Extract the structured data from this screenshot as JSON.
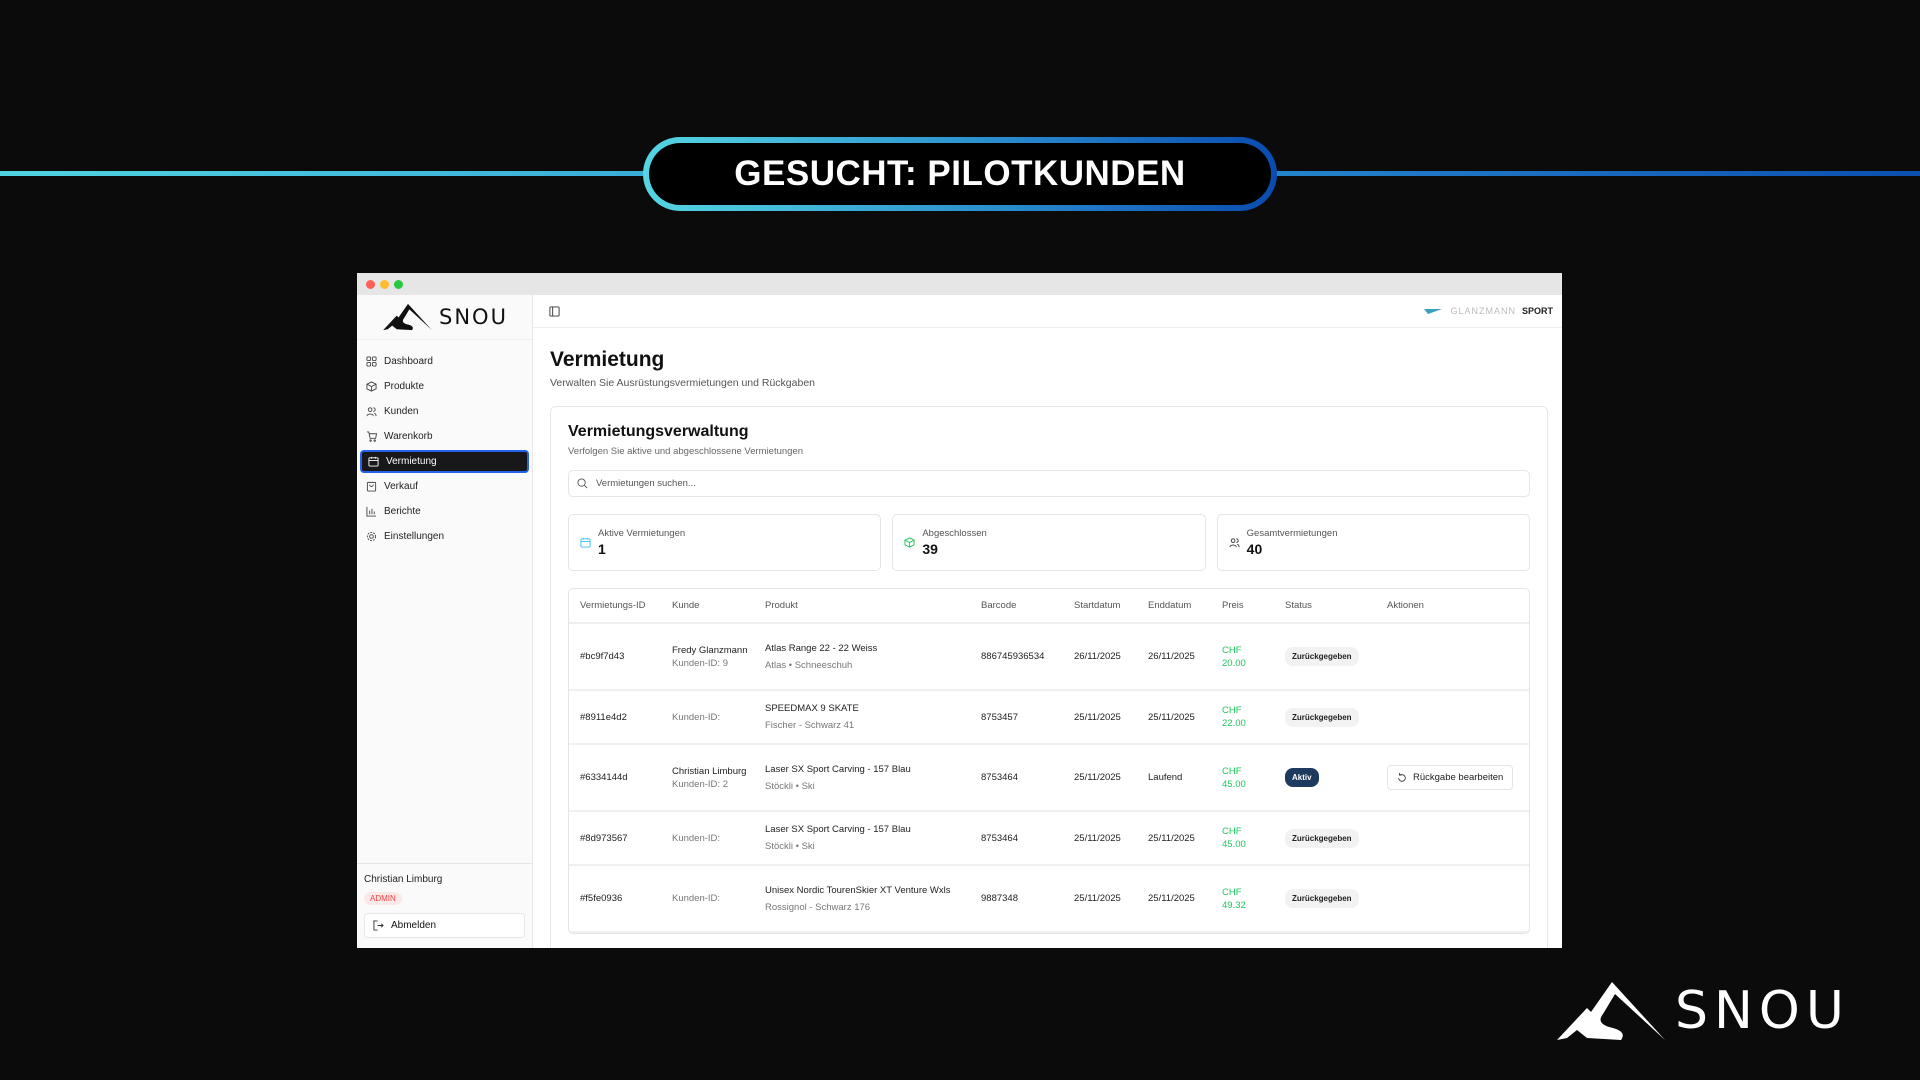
{
  "banner": {
    "title": "GESUCHT: PILOTKUNDEN",
    "gradient": [
      "#55d6e2",
      "#0a4bb0"
    ]
  },
  "brand": {
    "name": "SNOU"
  },
  "window": {
    "sidebar": {
      "logo": "SNOU",
      "items": [
        {
          "label": "Dashboard",
          "icon": "dashboard-icon"
        },
        {
          "label": "Produkte",
          "icon": "package-icon"
        },
        {
          "label": "Kunden",
          "icon": "users-icon"
        },
        {
          "label": "Warenkorb",
          "icon": "cart-icon"
        },
        {
          "label": "Vermietung",
          "icon": "calendar-icon",
          "active": true
        },
        {
          "label": "Verkauf",
          "icon": "bag-icon"
        },
        {
          "label": "Berichte",
          "icon": "chart-icon"
        },
        {
          "label": "Einstellungen",
          "icon": "gear-icon"
        }
      ],
      "user": {
        "name": "Christian Limburg",
        "role": "ADMIN",
        "logout": "Abmelden"
      }
    },
    "topbar": {
      "partner_logo": "GLANZMANN",
      "partner_logo_suffix": "SPORT"
    },
    "page": {
      "title": "Vermietung",
      "subtitle": "Verwalten Sie Ausrüstungsvermietungen und Rückgaben"
    },
    "card": {
      "title": "Vermietungsverwaltung",
      "subtitle": "Verfolgen Sie aktive und abgeschlossene Vermietungen",
      "search_placeholder": "Vermietungen suchen...",
      "stats": [
        {
          "label": "Aktive Vermietungen",
          "value": "1",
          "color": "#38bdf8"
        },
        {
          "label": "Abgeschlossen",
          "value": "39",
          "color": "#22c55e"
        },
        {
          "label": "Gesamtvermietungen",
          "value": "40",
          "color": "#333333"
        }
      ],
      "columns": [
        "Vermietungs-ID",
        "Kunde",
        "Produkt",
        "Barcode",
        "Startdatum",
        "Enddatum",
        "Preis",
        "Status",
        "Aktionen"
      ],
      "rows": [
        {
          "id": "#bc9f7d43",
          "customer": "Fredy Glanzmann",
          "customer_id": "Kunden-ID: 9",
          "product": "Atlas Range 22 - 22 Weiss",
          "product_sub": "Atlas • Schneeschuh",
          "barcode": "886745936534",
          "start": "26/11/2025",
          "end": "26/11/2025",
          "currency": "CHF",
          "price": "20.00",
          "status": "Zurückgegeben"
        },
        {
          "id": "#8911e4d2",
          "customer": "",
          "customer_id": "Kunden-ID:",
          "product": "SPEEDMAX 9 SKATE",
          "product_sub": "Fischer - Schwarz 41",
          "barcode": "8753457",
          "start": "25/11/2025",
          "end": "25/11/2025",
          "currency": "CHF",
          "price": "22.00",
          "status": "Zurückgegeben"
        },
        {
          "id": "#6334144d",
          "customer": "Christian Limburg",
          "customer_id": "Kunden-ID: 2",
          "product": "Laser SX Sport Carving - 157 Blau",
          "product_sub": "Stöckli • Ski",
          "barcode": "8753464",
          "start": "25/11/2025",
          "end": "Laufend",
          "currency": "CHF",
          "price": "45.00",
          "status": "Aktiv",
          "action": "Rückgabe bearbeiten"
        },
        {
          "id": "#8d973567",
          "customer": "",
          "customer_id": "Kunden-ID:",
          "product": "Laser SX Sport Carving - 157 Blau",
          "product_sub": "Stöckli • Ski",
          "barcode": "8753464",
          "start": "25/11/2025",
          "end": "25/11/2025",
          "currency": "CHF",
          "price": "45.00",
          "status": "Zurückgegeben"
        },
        {
          "id": "#f5fe0936",
          "customer": "",
          "customer_id": "Kunden-ID:",
          "product": "Unisex Nordic TourenSkier XT Venture Wxls",
          "product_sub": "Rossignol - Schwarz 176",
          "barcode": "9887348",
          "start": "25/11/2025",
          "end": "25/11/2025",
          "currency": "CHF",
          "price": "49.32",
          "status": "Zurückgegeben"
        }
      ]
    }
  }
}
